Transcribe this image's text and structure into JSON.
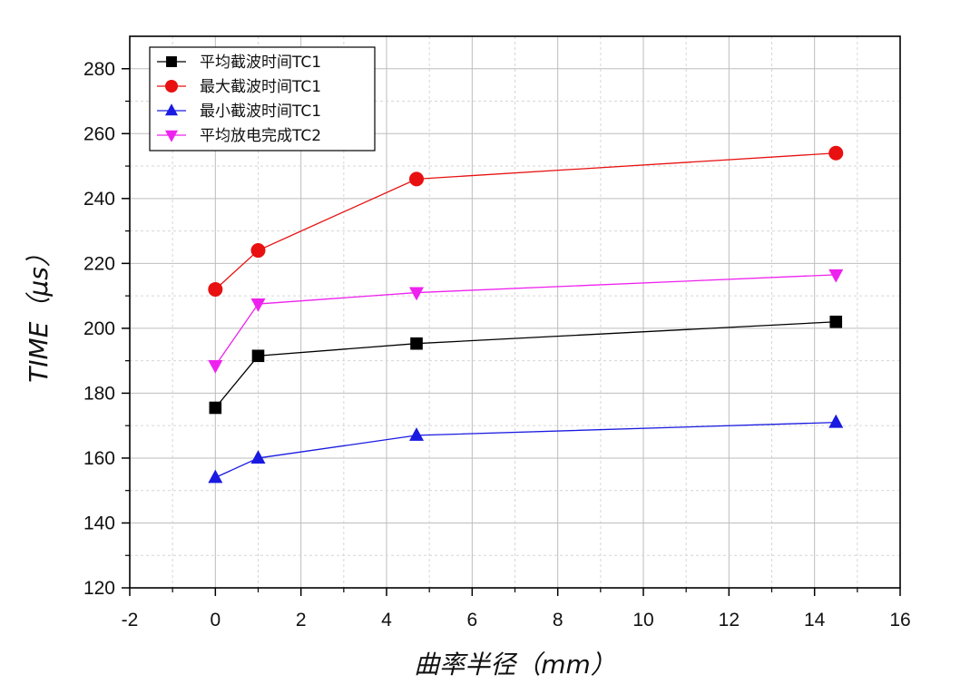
{
  "chart_data": {
    "type": "line",
    "xlabel": "曲率半径（mm）",
    "ylabel": "TIME（μs）",
    "xlim": [
      -2,
      16
    ],
    "ylim": [
      120,
      290
    ],
    "xticks": [
      -2,
      0,
      2,
      4,
      6,
      8,
      10,
      12,
      14,
      16
    ],
    "yticks": [
      120,
      140,
      160,
      180,
      200,
      220,
      240,
      260,
      280
    ],
    "grid": true,
    "legend_position": "top-left",
    "x": [
      0,
      1,
      4.7,
      14.5
    ],
    "series": [
      {
        "name": "平均截波时间TC1",
        "values": [
          175.5,
          191.5,
          195.3,
          202
        ],
        "color": "#000000",
        "marker": "square"
      },
      {
        "name": "最大截波时间TC1",
        "values": [
          212,
          224,
          246,
          254
        ],
        "color": "#e81010",
        "marker": "circle"
      },
      {
        "name": "最小截波时间TC1",
        "values": [
          154,
          160,
          167,
          171
        ],
        "color": "#1a1ae0",
        "marker": "triangle-up"
      },
      {
        "name": "平均放电完成TC2",
        "values": [
          188.5,
          207.5,
          211,
          216.5
        ],
        "color": "#ee22ee",
        "marker": "triangle-down"
      }
    ]
  }
}
